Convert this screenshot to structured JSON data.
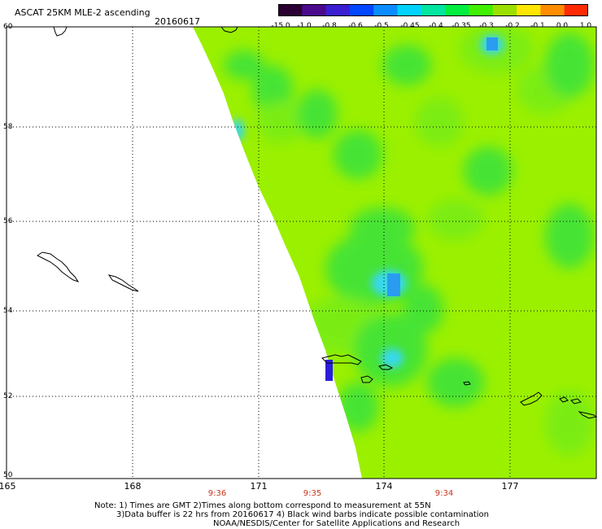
{
  "header": {
    "title": "ASCAT 25KM MLE-2 ascending",
    "date": "20160617"
  },
  "colorbar": {
    "labels": [
      "-15.0",
      "-1.0",
      "-0.8",
      "-0.6",
      "-0.5",
      "-0.45",
      "-0.4",
      "-0.35",
      "-0.3",
      "-0.2",
      "-0.1",
      "0.0",
      "1.0"
    ],
    "colors": [
      "#2a0032",
      "#4b0a8c",
      "#3a1ecf",
      "#0047ff",
      "#0a8cff",
      "#00d2ff",
      "#00e6a0",
      "#00ee40",
      "#40f000",
      "#9be000",
      "#ffe600",
      "#ff8c00",
      "#ff2a00"
    ]
  },
  "map": {
    "lat_labels": [
      "60",
      "58",
      "56",
      "54",
      "52",
      "50"
    ],
    "lon_labels": [
      "165",
      "168",
      "171",
      "174",
      "177"
    ],
    "times": [
      "9:36",
      "9:35",
      "9:34"
    ],
    "colors": {
      "background": "#9bf000",
      "green": "#3de23a",
      "light_green": "#78ec14",
      "cyan": "#38d8ec",
      "blue": "#2a9cf0",
      "purple": "#2a1edc",
      "grid": "#000000",
      "time_label": "#c8341c"
    }
  },
  "notes": [
    "Note: 1) Times are GMT 2)Times along bottom correspond to measurement at 55N",
    "3)Data buffer is 22 hrs from 20160617 4) Black wind barbs indicate possible contamination",
    "NOAA/NESDIS/Center for Satellite Applications and Research"
  ]
}
